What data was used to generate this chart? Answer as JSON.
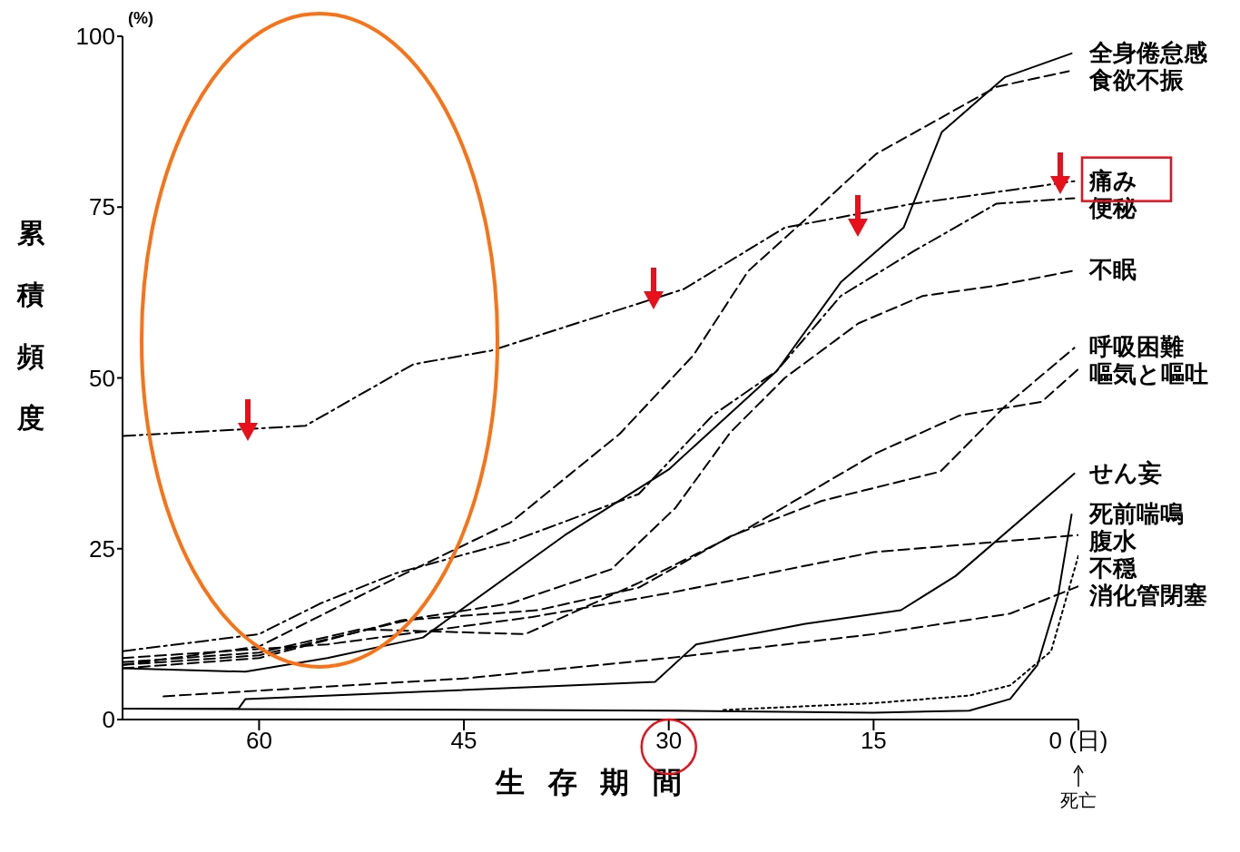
{
  "chart_data": {
    "type": "line",
    "xlabel": "生存期間",
    "ylabel": "累積頻度",
    "annotations": [
      "(%)",
      "死亡"
    ],
    "xlim": [
      70,
      0
    ],
    "xticks": [
      60,
      45,
      30,
      15,
      {
        "value": 0,
        "label": "0 (日)"
      }
    ],
    "ylim": [
      0,
      100
    ],
    "yticks": [
      0,
      25,
      50,
      75,
      100
    ],
    "series": [
      {
        "name": "全身倦怠感",
        "color": "#000000",
        "line_style": "solid",
        "x": [
          70,
          61,
          55,
          48,
          45.6,
          37.6,
          30,
          22.1,
          17.4,
          12.8,
          10,
          5.4,
          0.5
        ],
        "values": [
          7.5,
          7,
          9,
          12,
          15.5,
          27,
          36.6,
          51,
          64,
          72,
          86,
          94,
          97.5
        ]
      },
      {
        "name": "食欲不振",
        "color": "#000000",
        "line_style": "dashed",
        "x": [
          70,
          60,
          50,
          41.6,
          33.6,
          28.2,
          24.2,
          20.1,
          14.8,
          6,
          0.7
        ],
        "values": [
          8,
          10.7,
          20.7,
          28.8,
          41.8,
          53.3,
          65.6,
          73,
          82.8,
          92.6,
          94.9
        ]
      },
      {
        "name": "痛み",
        "color": "#000000",
        "line_style": "dashdot",
        "x": [
          70,
          56.6,
          48.7,
          43,
          28.9,
          21.5,
          12.1,
          0.3
        ],
        "values": [
          41.5,
          43,
          52,
          54,
          63,
          72,
          75.5,
          78.8
        ]
      },
      {
        "name": "便秘",
        "color": "#000000",
        "line_style": "dashdot",
        "x": [
          70,
          60,
          55.5,
          50,
          41.6,
          32.2,
          26.8,
          22.1,
          17.4,
          12.1,
          6,
          0.3
        ],
        "values": [
          10,
          12.5,
          17,
          21.4,
          26,
          33,
          44.5,
          51,
          62,
          68.5,
          75.5,
          76.3
        ]
      },
      {
        "name": "不眠",
        "color": "#000000",
        "line_style": "dashed",
        "x": [
          70,
          60,
          49.6,
          41.6,
          34.2,
          29.5,
          25.5,
          21.5,
          16.1,
          11.4,
          6,
          0.3
        ],
        "values": [
          7.5,
          9,
          14.5,
          17,
          22,
          31,
          42,
          50,
          58,
          62,
          63.5,
          65.7
        ]
      },
      {
        "name": "呼吸困難",
        "color": "#000000",
        "line_style": "dashed",
        "x": [
          70,
          60,
          49,
          39.6,
          32.2,
          25.5,
          18.8,
          10.1,
          5.4,
          0.3
        ],
        "values": [
          8,
          9.4,
          14.6,
          16,
          19.3,
          26.8,
          32,
          36.3,
          45.8,
          54.4
        ]
      },
      {
        "name": "嘔気と嘔吐",
        "color": "#000000",
        "line_style": "dashed",
        "x": [
          70,
          60,
          52.6,
          40.5,
          32.2,
          24.2,
          14.8,
          8.7,
          2.7,
          0
        ],
        "values": [
          8.4,
          9.8,
          13.2,
          12.5,
          20,
          28,
          39,
          44.5,
          46.5,
          51.3
        ]
      },
      {
        "name": "せん妄",
        "color": "#000000",
        "line_style": "solid",
        "x": [
          70,
          61.5,
          61,
          31,
          28,
          20,
          13,
          9,
          0.3
        ],
        "values": [
          1.6,
          1.6,
          3,
          5.5,
          11,
          14,
          16,
          21,
          36
        ]
      },
      {
        "name": "死前喘鳴",
        "color": "#000000",
        "line_style": "solid",
        "x": [
          70,
          30,
          15,
          8,
          5,
          3,
          1.5,
          0.5
        ],
        "values": [
          1.6,
          1.3,
          1,
          1.3,
          3,
          8,
          18,
          30
        ]
      },
      {
        "name": "腹水",
        "color": "#000000",
        "line_style": "dashed",
        "x": [
          70,
          55,
          40,
          30,
          15,
          0
        ],
        "values": [
          9,
          11,
          15,
          18.5,
          24.5,
          27
        ]
      },
      {
        "name": "不穏",
        "color": "#000000",
        "line_style": "dotted",
        "x": [
          26,
          15,
          8,
          5,
          2,
          0
        ],
        "values": [
          1.4,
          2.4,
          3.5,
          5,
          10,
          24
        ]
      },
      {
        "name": "消化管閉塞",
        "color": "#000000",
        "line_style": "dashed",
        "x": [
          67,
          45,
          30,
          15,
          5,
          0
        ],
        "values": [
          3.4,
          6,
          9,
          12.5,
          15.5,
          19.5
        ]
      }
    ]
  }
}
